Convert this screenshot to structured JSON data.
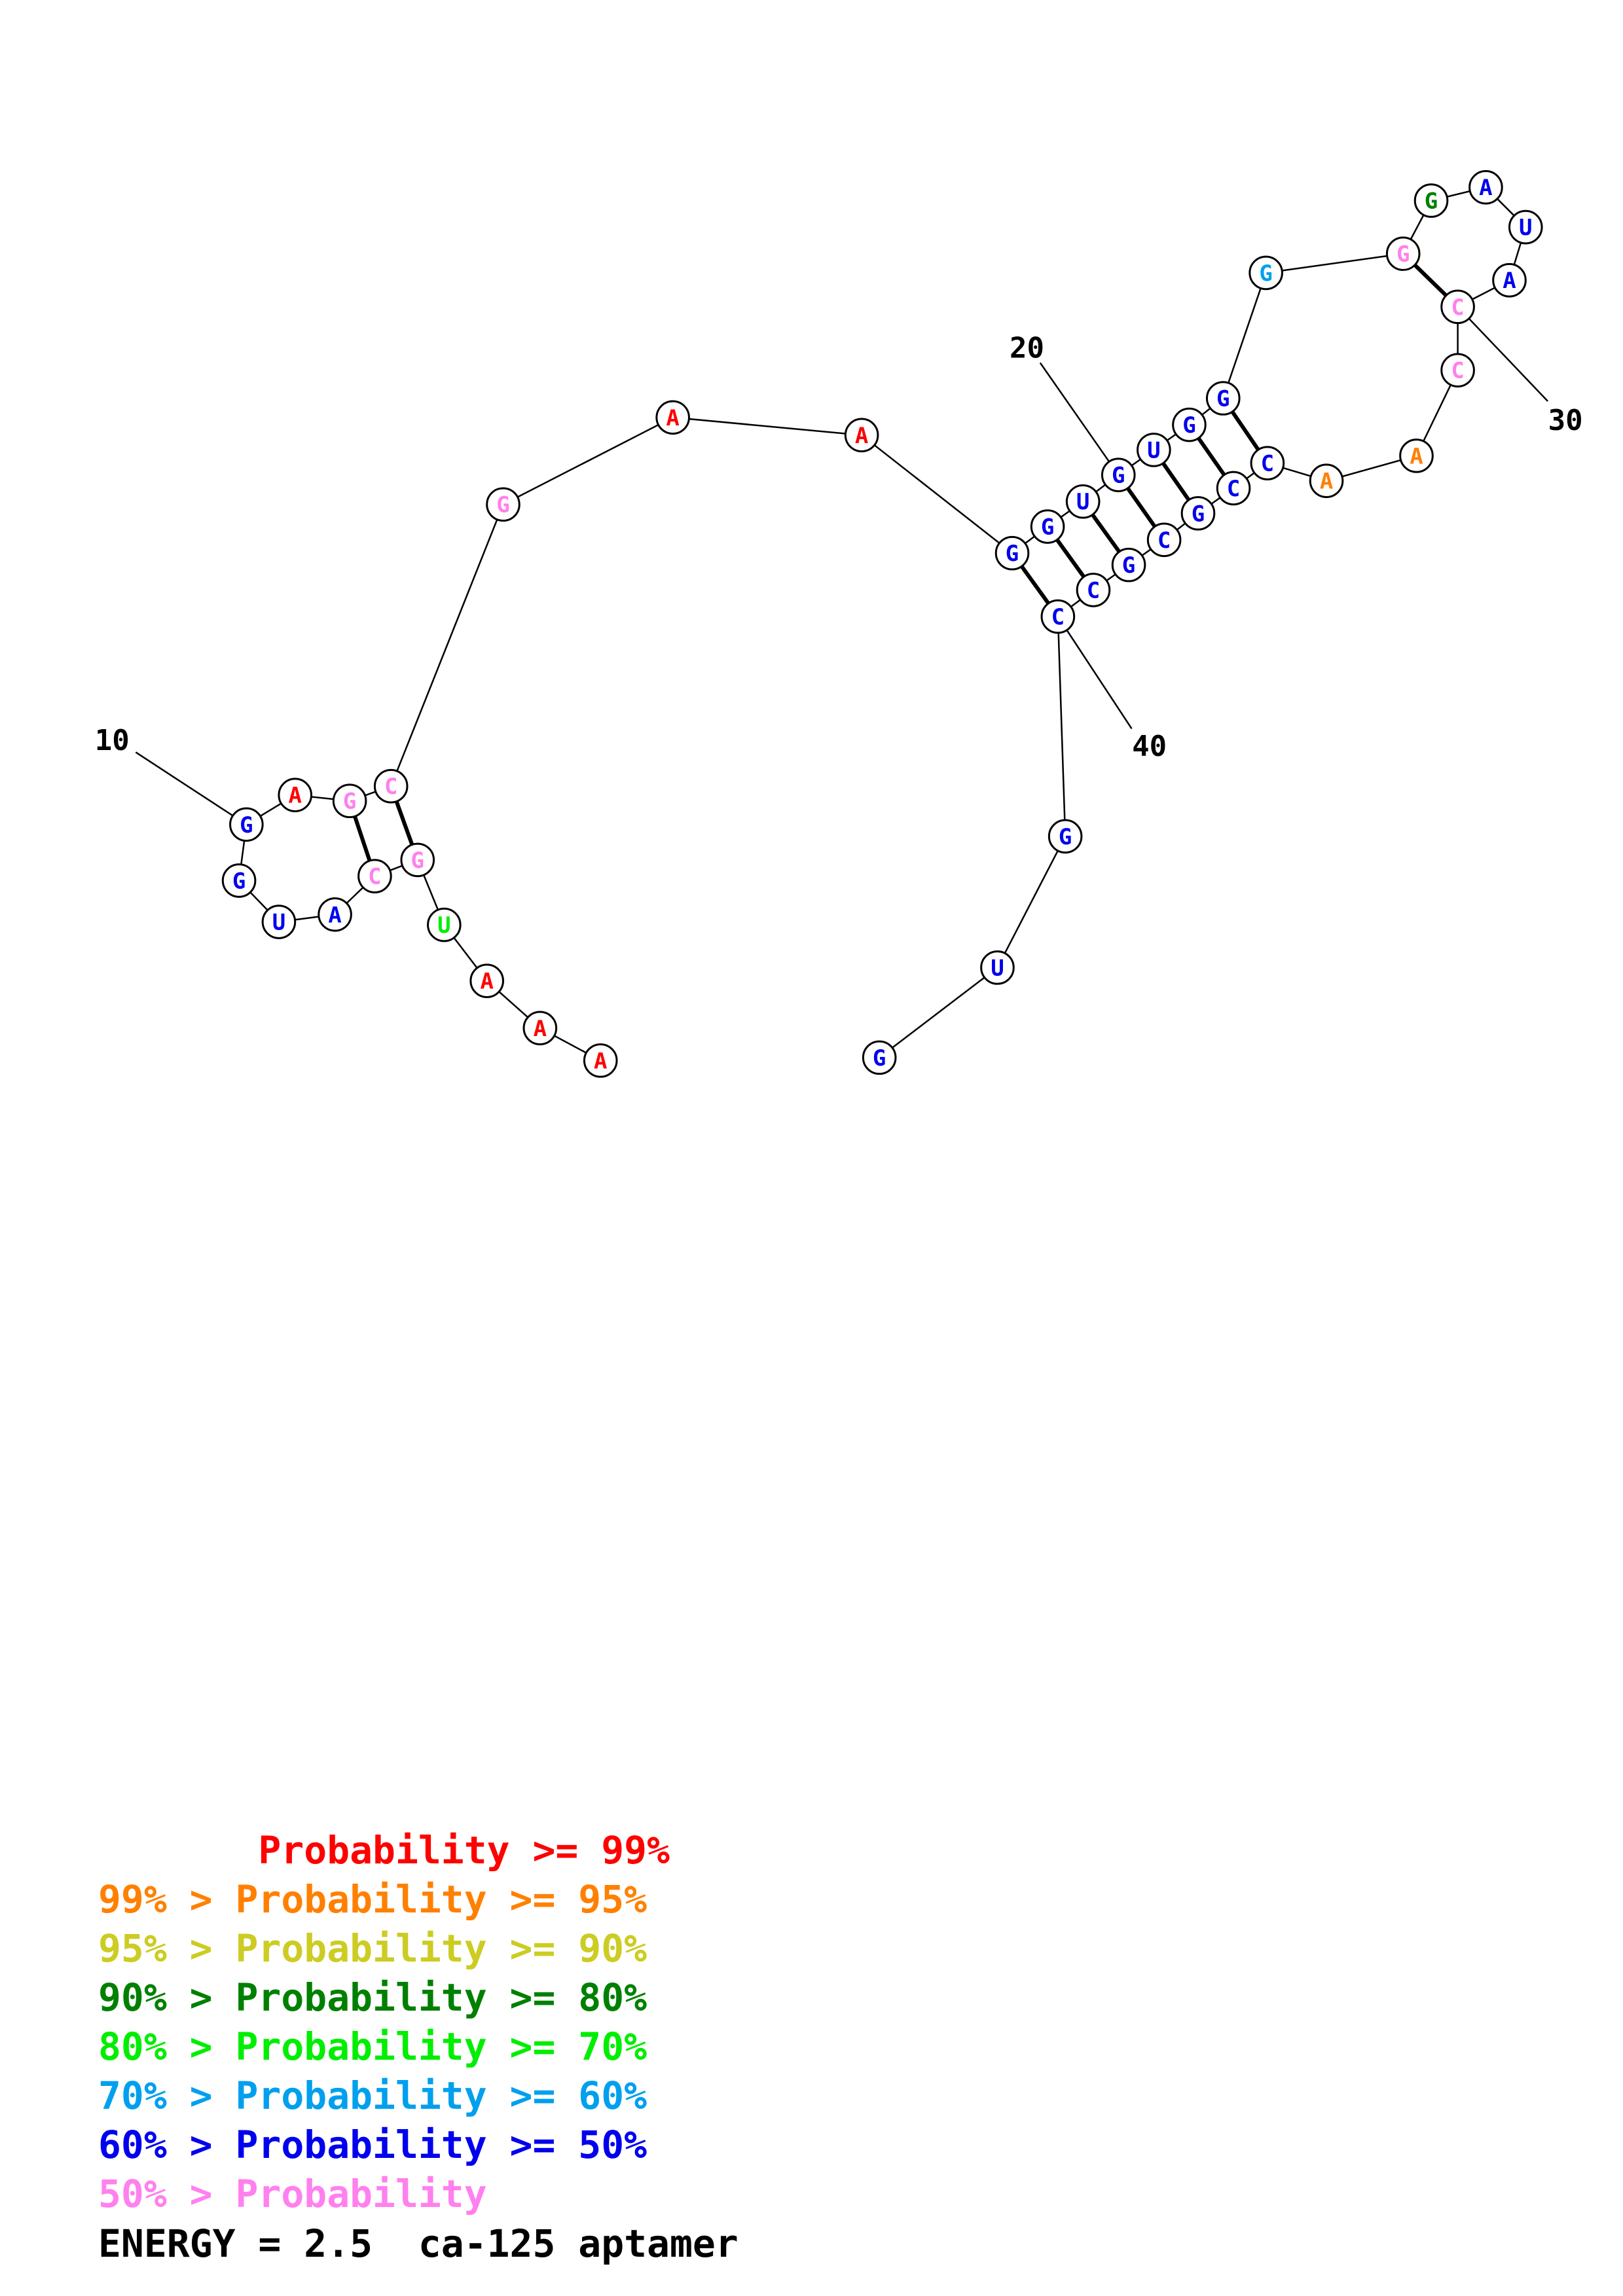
{
  "colors": {
    "red": "#ff0000",
    "orange": "#ff8000",
    "yellow": "#cccc22",
    "darkgreen": "#008000",
    "green": "#00ee00",
    "cyan": "#00a0ee",
    "blue": "#0000ee",
    "pink": "#ff80ee"
  },
  "sequence": [
    {
      "base": "A",
      "color": "red"
    },
    {
      "base": "A",
      "color": "red"
    },
    {
      "base": "A",
      "color": "red"
    },
    {
      "base": "U",
      "color": "green"
    },
    {
      "base": "G",
      "color": "pink"
    },
    {
      "base": "C",
      "color": "pink"
    },
    {
      "base": "A",
      "color": "blue"
    },
    {
      "base": "U",
      "color": "blue"
    },
    {
      "base": "G",
      "color": "blue"
    },
    {
      "base": "G",
      "color": "blue"
    },
    {
      "base": "A",
      "color": "red"
    },
    {
      "base": "G",
      "color": "pink"
    },
    {
      "base": "C",
      "color": "pink"
    },
    {
      "base": "G",
      "color": "pink"
    },
    {
      "base": "A",
      "color": "red"
    },
    {
      "base": "A",
      "color": "red"
    },
    {
      "base": "G",
      "color": "blue"
    },
    {
      "base": "G",
      "color": "blue"
    },
    {
      "base": "U",
      "color": "blue"
    },
    {
      "base": "G",
      "color": "blue"
    },
    {
      "base": "U",
      "color": "blue"
    },
    {
      "base": "G",
      "color": "blue"
    },
    {
      "base": "G",
      "color": "blue"
    },
    {
      "base": "G",
      "color": "cyan"
    },
    {
      "base": "G",
      "color": "pink"
    },
    {
      "base": "G",
      "color": "darkgreen"
    },
    {
      "base": "A",
      "color": "blue"
    },
    {
      "base": "U",
      "color": "blue"
    },
    {
      "base": "A",
      "color": "blue"
    },
    {
      "base": "C",
      "color": "pink"
    },
    {
      "base": "C",
      "color": "pink"
    },
    {
      "base": "A",
      "color": "orange"
    },
    {
      "base": "A",
      "color": "orange"
    },
    {
      "base": "C",
      "color": "blue"
    },
    {
      "base": "C",
      "color": "blue"
    },
    {
      "base": "G",
      "color": "blue"
    },
    {
      "base": "C",
      "color": "blue"
    },
    {
      "base": "G",
      "color": "blue"
    },
    {
      "base": "C",
      "color": "blue"
    },
    {
      "base": "C",
      "color": "blue"
    },
    {
      "base": "G",
      "color": "blue"
    },
    {
      "base": "U",
      "color": "blue"
    },
    {
      "base": "G",
      "color": "blue"
    }
  ],
  "pairs": [
    [
      5,
      13
    ],
    [
      6,
      12
    ],
    [
      17,
      40
    ],
    [
      18,
      39
    ],
    [
      19,
      38
    ],
    [
      20,
      37
    ],
    [
      21,
      36
    ],
    [
      22,
      35
    ],
    [
      23,
      34
    ],
    [
      25,
      30
    ]
  ],
  "position_labels": [
    {
      "index": 10,
      "text": "10"
    },
    {
      "index": 20,
      "text": "20"
    },
    {
      "index": 30,
      "text": "30"
    },
    {
      "index": 40,
      "text": "40"
    }
  ],
  "legend": [
    {
      "text": "       Probability >= 99%",
      "color": "red"
    },
    {
      "text": "99% > Probability >= 95%",
      "color": "orange"
    },
    {
      "text": "95% > Probability >= 90%",
      "color": "yellow"
    },
    {
      "text": "90% > Probability >= 80%",
      "color": "darkgreen"
    },
    {
      "text": "80% > Probability >= 70%",
      "color": "green"
    },
    {
      "text": "70% > Probability >= 60%",
      "color": "cyan"
    },
    {
      "text": "60% > Probability >= 50%",
      "color": "blue"
    },
    {
      "text": "50% > Probability",
      "color": "pink"
    }
  ],
  "footer": "ENERGY = 2.5  ca-125 aptamer"
}
